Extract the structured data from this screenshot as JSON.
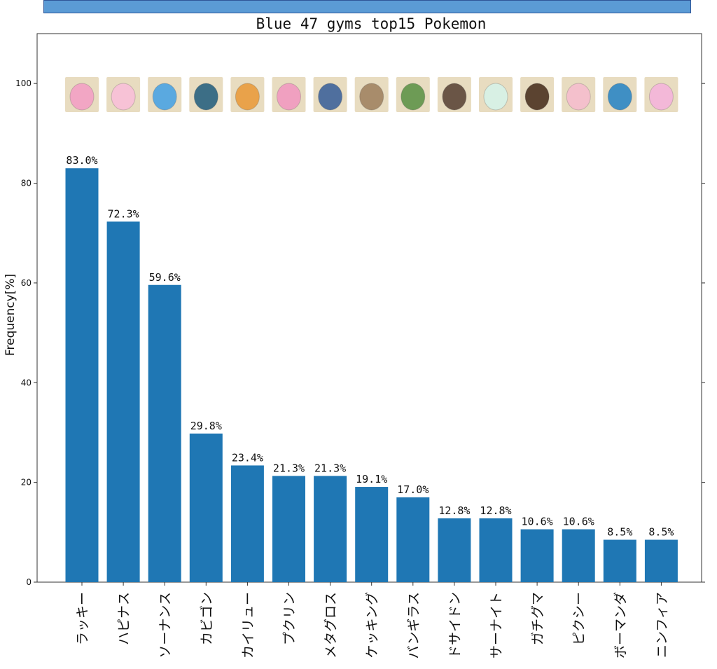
{
  "chart_data": {
    "type": "bar",
    "title": "Blue 47 gyms top15 Pokemon",
    "xlabel": "",
    "ylabel": "Frequency[%]",
    "ylim": [
      0,
      110
    ],
    "yticks": [
      0,
      20,
      40,
      60,
      80,
      100
    ],
    "grid": false,
    "bar_color": "#1f77b4",
    "categories": [
      "ラッキー",
      "ハピナス",
      "ソーナンス",
      "カビゴン",
      "カイリュー",
      "プクリン",
      "メタグロス",
      "ケッキング",
      "バンギラス",
      "ドサイドン",
      "サーナイト",
      "ガチグマ",
      "ピクシー",
      "ボーマンダ",
      "ニンフィア"
    ],
    "values": [
      83.0,
      72.3,
      59.6,
      29.8,
      23.4,
      21.3,
      21.3,
      19.1,
      17.0,
      12.8,
      12.8,
      10.6,
      10.6,
      8.5,
      8.5
    ],
    "data_labels": [
      "83.0%",
      "72.3%",
      "59.6%",
      "29.8%",
      "23.4%",
      "21.3%",
      "21.3%",
      "19.1%",
      "17.0%",
      "12.8%",
      "12.8%",
      "10.6%",
      "10.6%",
      "8.5%",
      "8.5%"
    ],
    "images": [
      {
        "name": "chansey-icon",
        "color": "#f2a6c4"
      },
      {
        "name": "blissey-icon",
        "color": "#f7c2d6"
      },
      {
        "name": "wobbuffet-icon",
        "color": "#5aa9e0"
      },
      {
        "name": "snorlax-icon",
        "color": "#3c6e86"
      },
      {
        "name": "dragonite-icon",
        "color": "#e9a24a"
      },
      {
        "name": "wigglytuff-icon",
        "color": "#f0a0c0"
      },
      {
        "name": "metagross-icon",
        "color": "#4f6f9e"
      },
      {
        "name": "slaking-icon",
        "color": "#a88c6b"
      },
      {
        "name": "tyranitar-icon",
        "color": "#6d9b55"
      },
      {
        "name": "rhyperior-icon",
        "color": "#6a5546"
      },
      {
        "name": "gardevoir-icon",
        "color": "#d8f0e4"
      },
      {
        "name": "ursaluna-icon",
        "color": "#5b4330"
      },
      {
        "name": "clefable-icon",
        "color": "#f4c0cc"
      },
      {
        "name": "salamence-icon",
        "color": "#3f8fc4"
      },
      {
        "name": "sylveon-icon",
        "color": "#f3b8d8"
      }
    ]
  }
}
